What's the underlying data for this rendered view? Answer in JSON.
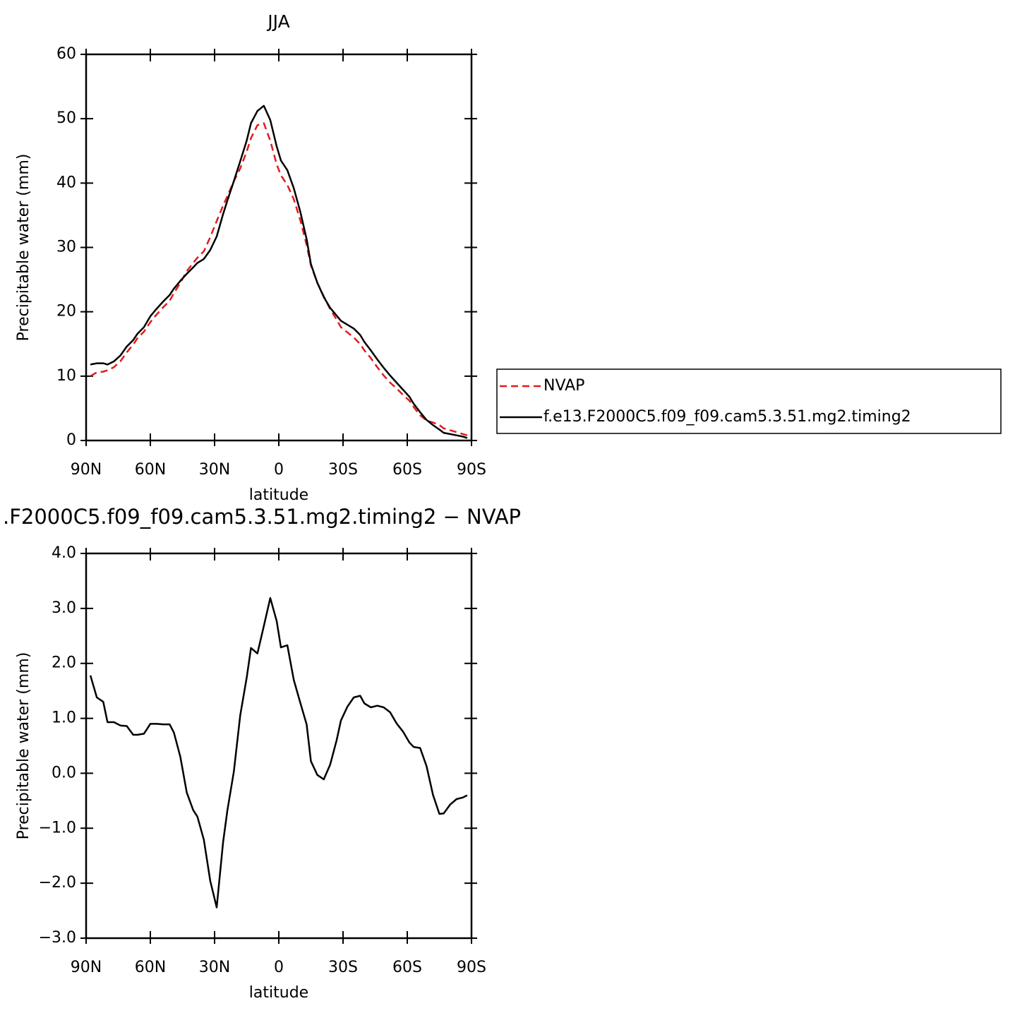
{
  "chart_data": [
    {
      "type": "line",
      "title": "JJA",
      "xlabel": "latitude",
      "ylabel": "Precipitable water (mm)",
      "x": [
        88,
        85,
        82,
        80,
        77,
        74,
        71,
        68,
        66,
        63,
        60,
        57,
        54,
        51,
        49,
        46,
        43,
        40,
        38,
        35,
        32,
        29,
        26,
        24,
        21,
        18,
        15,
        13,
        10,
        7,
        4,
        1,
        -1,
        -4,
        -7,
        -10,
        -13,
        -15,
        -18,
        -21,
        -24,
        -27,
        -29,
        -32,
        -35,
        -38,
        -40,
        -43,
        -46,
        -49,
        -52,
        -55,
        -58,
        -61,
        -63,
        -66,
        -69,
        -72,
        -75,
        -77,
        -80,
        -83,
        -86,
        -88
      ],
      "series": [
        {
          "name": "NVAP",
          "color": "#e41a1c",
          "style": "dashed",
          "values": [
            10.0,
            10.6,
            10.7,
            10.9,
            11.4,
            12.3,
            13.7,
            14.9,
            15.9,
            16.9,
            18.4,
            19.6,
            20.7,
            21.7,
            22.9,
            24.5,
            26.3,
            27.6,
            28.4,
            29.4,
            31.6,
            34.1,
            36.5,
            38.0,
            40.3,
            42.3,
            44.9,
            47.0,
            49.0,
            49.3,
            46.6,
            42.9,
            41.2,
            39.7,
            37.5,
            34.3,
            30.4,
            27.2,
            24.5,
            22.4,
            20.4,
            18.8,
            17.6,
            16.8,
            16.0,
            15.0,
            14.0,
            12.8,
            11.4,
            10.1,
            9.0,
            8.1,
            7.1,
            6.2,
            5.2,
            3.9,
            3.1,
            2.8,
            2.4,
            1.9,
            1.6,
            1.3,
            1.0,
            0.8
          ]
        },
        {
          "name": "f.e13.F2000C5.f09_f09.cam5.3.51.mg2.timing2",
          "color": "#000000",
          "style": "solid",
          "values": [
            11.8,
            12.0,
            12.0,
            11.8,
            12.3,
            13.2,
            14.6,
            15.6,
            16.6,
            17.6,
            19.3,
            20.5,
            21.6,
            22.6,
            23.6,
            24.8,
            25.9,
            26.9,
            27.6,
            28.2,
            29.6,
            31.7,
            35.2,
            37.3,
            40.3,
            43.4,
            46.6,
            49.3,
            51.2,
            52.0,
            49.8,
            45.7,
            43.5,
            42.0,
            39.2,
            35.6,
            31.3,
            27.4,
            24.5,
            22.3,
            20.6,
            19.4,
            18.6,
            18.0,
            17.4,
            16.4,
            15.3,
            14.0,
            12.6,
            11.3,
            10.1,
            9.0,
            7.9,
            6.8,
            5.7,
            4.4,
            3.2,
            2.4,
            1.7,
            1.2,
            1.0,
            0.8,
            0.6,
            0.4
          ]
        }
      ],
      "xlim": [
        90,
        -90
      ],
      "xticks": [
        {
          "value": 90,
          "label": "90N"
        },
        {
          "value": 60,
          "label": "60N"
        },
        {
          "value": 30,
          "label": "30N"
        },
        0,
        {
          "value": -30,
          "label": "30S"
        },
        {
          "value": -60,
          "label": "60S"
        },
        {
          "value": -90,
          "label": "90S"
        }
      ],
      "ylim": [
        0,
        60
      ],
      "yticks": [
        0,
        10,
        20,
        30,
        40,
        50,
        60
      ],
      "legend": "right"
    },
    {
      "type": "line",
      "title": ".F2000C5.f09_f09.cam5.3.51.mg2.timing2 − NVAP",
      "xlabel": "latitude",
      "ylabel": "Precipitable water (mm)",
      "x": [
        88,
        85,
        82,
        80,
        77,
        74,
        71,
        68,
        66,
        63,
        60,
        57,
        54,
        51,
        49,
        46,
        43,
        40,
        38,
        35,
        32,
        29,
        26,
        24,
        21,
        18,
        15,
        13,
        10,
        7,
        4,
        1,
        -1,
        -4,
        -7,
        -10,
        -13,
        -15,
        -18,
        -21,
        -24,
        -27,
        -29,
        -32,
        -35,
        -38,
        -40,
        -43,
        -46,
        -49,
        -52,
        -55,
        -58,
        -61,
        -63,
        -66,
        -69,
        -72,
        -75,
        -77,
        -80,
        -83,
        -86,
        -88
      ],
      "values": [
        1.78,
        1.38,
        1.3,
        0.93,
        0.93,
        0.87,
        0.86,
        0.7,
        0.7,
        0.72,
        0.9,
        0.9,
        0.89,
        0.89,
        0.74,
        0.3,
        -0.35,
        -0.67,
        -0.79,
        -1.21,
        -1.96,
        -2.44,
        -1.25,
        -0.67,
        0.03,
        1.06,
        1.74,
        2.28,
        2.18,
        2.68,
        3.19,
        2.77,
        2.29,
        2.33,
        1.7,
        1.29,
        0.89,
        0.22,
        -0.03,
        -0.11,
        0.16,
        0.6,
        0.96,
        1.21,
        1.38,
        1.41,
        1.27,
        1.2,
        1.23,
        1.2,
        1.11,
        0.91,
        0.76,
        0.56,
        0.48,
        0.46,
        0.13,
        -0.39,
        -0.74,
        -0.73,
        -0.57,
        -0.47,
        -0.44,
        -0.4
      ],
      "color": "#000000",
      "xlim": [
        90,
        -90
      ],
      "xticks": [
        {
          "value": 90,
          "label": "90N"
        },
        {
          "value": 60,
          "label": "60N"
        },
        {
          "value": 30,
          "label": "30N"
        },
        0,
        {
          "value": -30,
          "label": "30S"
        },
        {
          "value": -60,
          "label": "60S"
        },
        {
          "value": -90,
          "label": "90S"
        }
      ],
      "ylim": [
        -3,
        4
      ],
      "yticks": [
        {
          "value": -3,
          "label": "−3.0"
        },
        {
          "value": -2,
          "label": "−2.0"
        },
        {
          "value": -1,
          "label": "−1.0"
        },
        {
          "value": 0,
          "label": "0.0"
        },
        {
          "value": 1,
          "label": "1.0"
        },
        {
          "value": 2,
          "label": "2.0"
        },
        {
          "value": 3,
          "label": "3.0"
        },
        {
          "value": 4,
          "label": "4.0"
        }
      ]
    }
  ]
}
